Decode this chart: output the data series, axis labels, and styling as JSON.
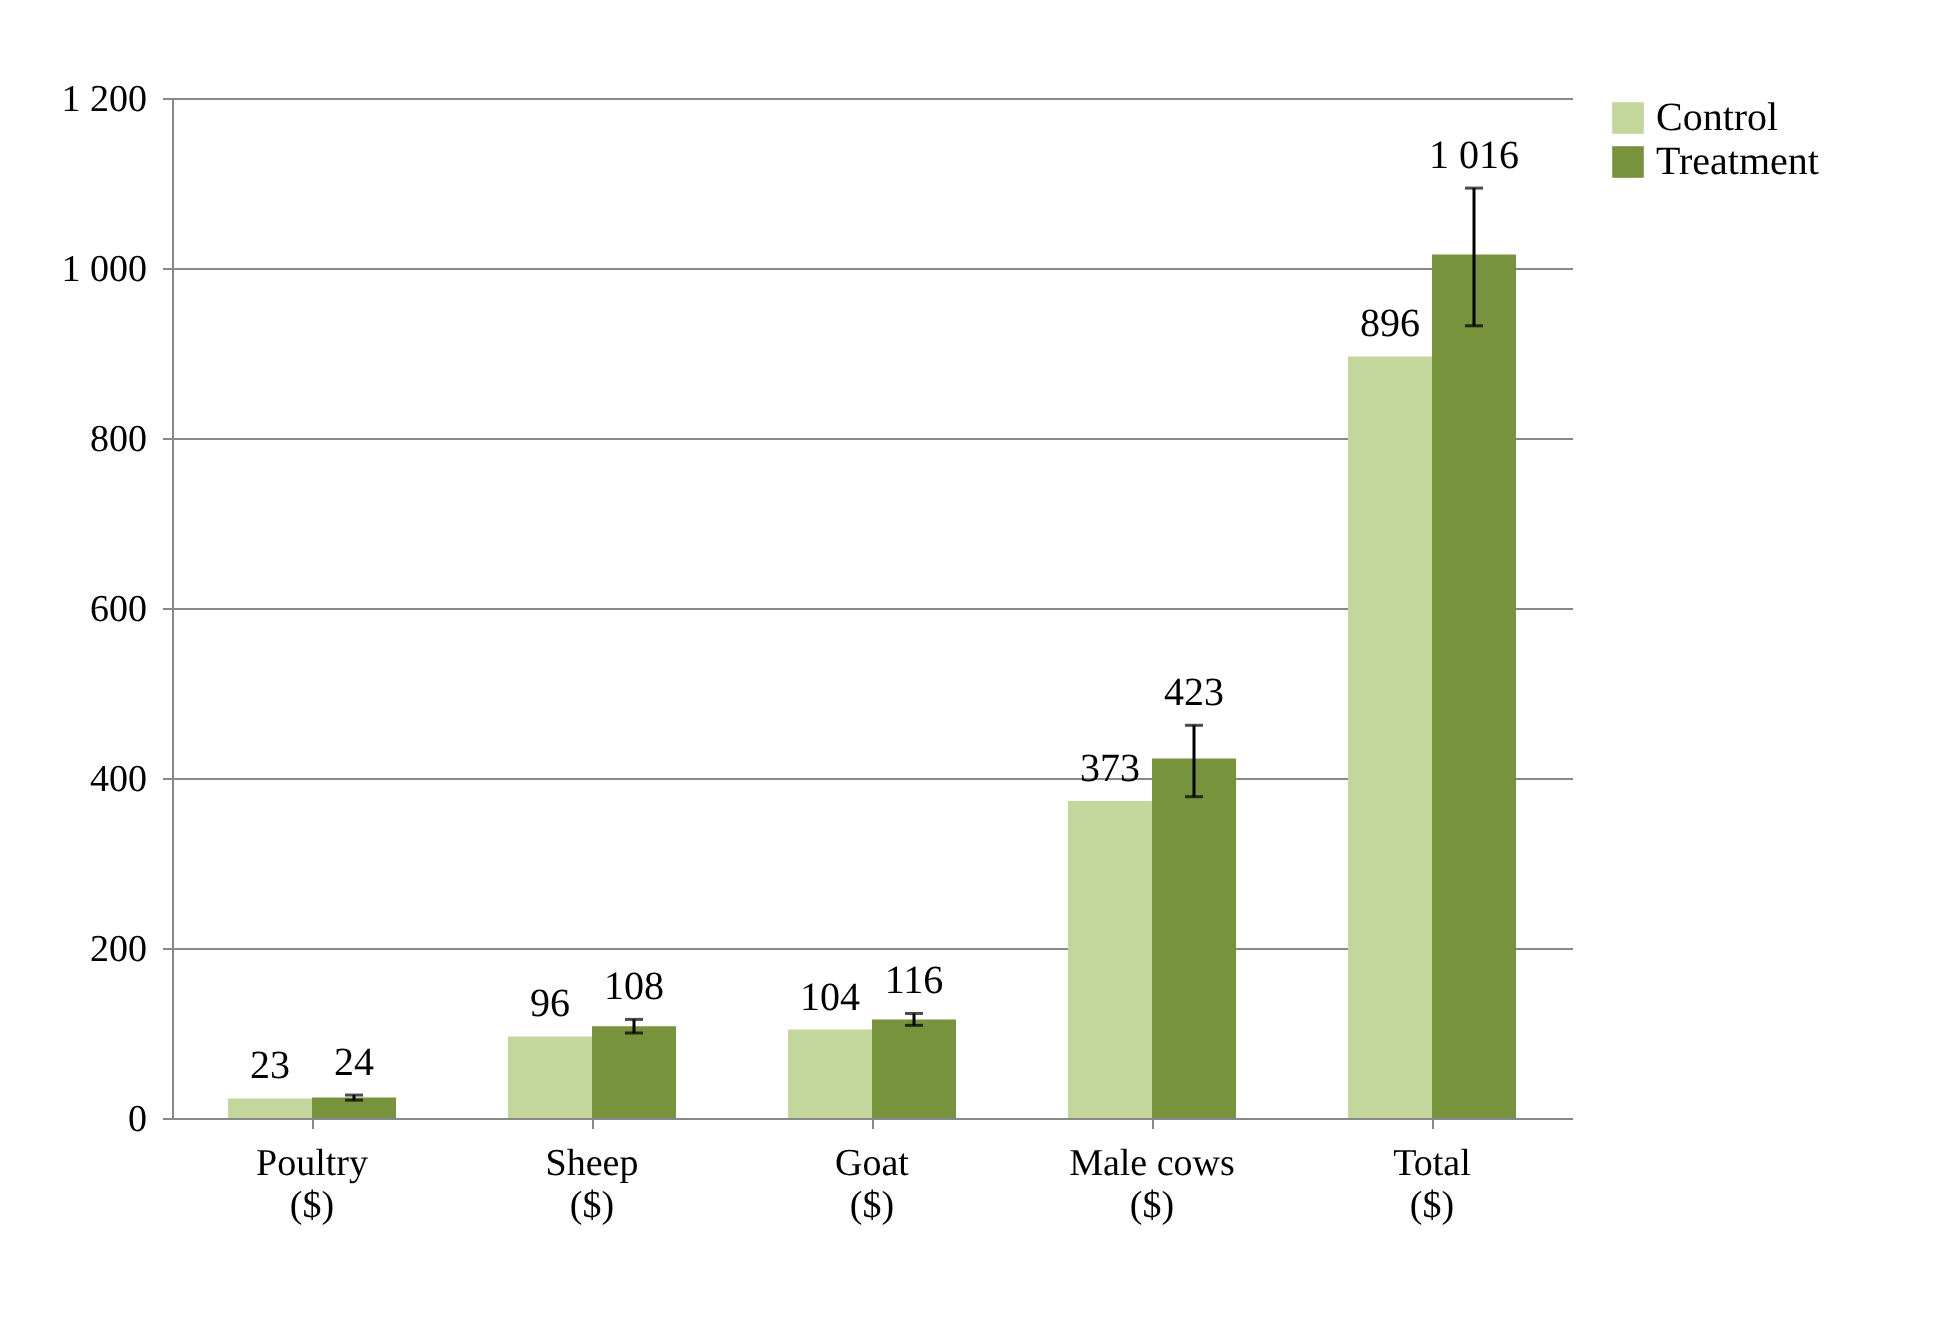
{
  "chart_data": {
    "type": "bar",
    "categories": [
      "Poultry\n($)",
      "Sheep\n($)",
      "Goat\n($)",
      "Male cows\n($)",
      "Total\n($)"
    ],
    "series": [
      {
        "name": "Control",
        "color": "#c3d69b",
        "values": [
          23,
          96,
          104,
          373,
          896
        ],
        "value_labels": [
          "23",
          "96",
          "104",
          "373",
          "896"
        ]
      },
      {
        "name": "Treatment",
        "color": "#77933c",
        "values": [
          24,
          108,
          116,
          423,
          1016
        ],
        "value_labels": [
          "24",
          "108",
          "116",
          "423",
          "1 016"
        ],
        "errors": [
          3,
          8,
          7,
          [
            378,
            462
          ],
          [
            932,
            1094
          ]
        ]
      }
    ],
    "ylim": [
      0,
      1200
    ],
    "yticks": [
      0,
      200,
      400,
      600,
      800,
      {
        "value": 1000,
        "label": "1 000"
      },
      {
        "value": 1200,
        "label": "1 200"
      }
    ],
    "grid": "y",
    "legend": "right"
  }
}
